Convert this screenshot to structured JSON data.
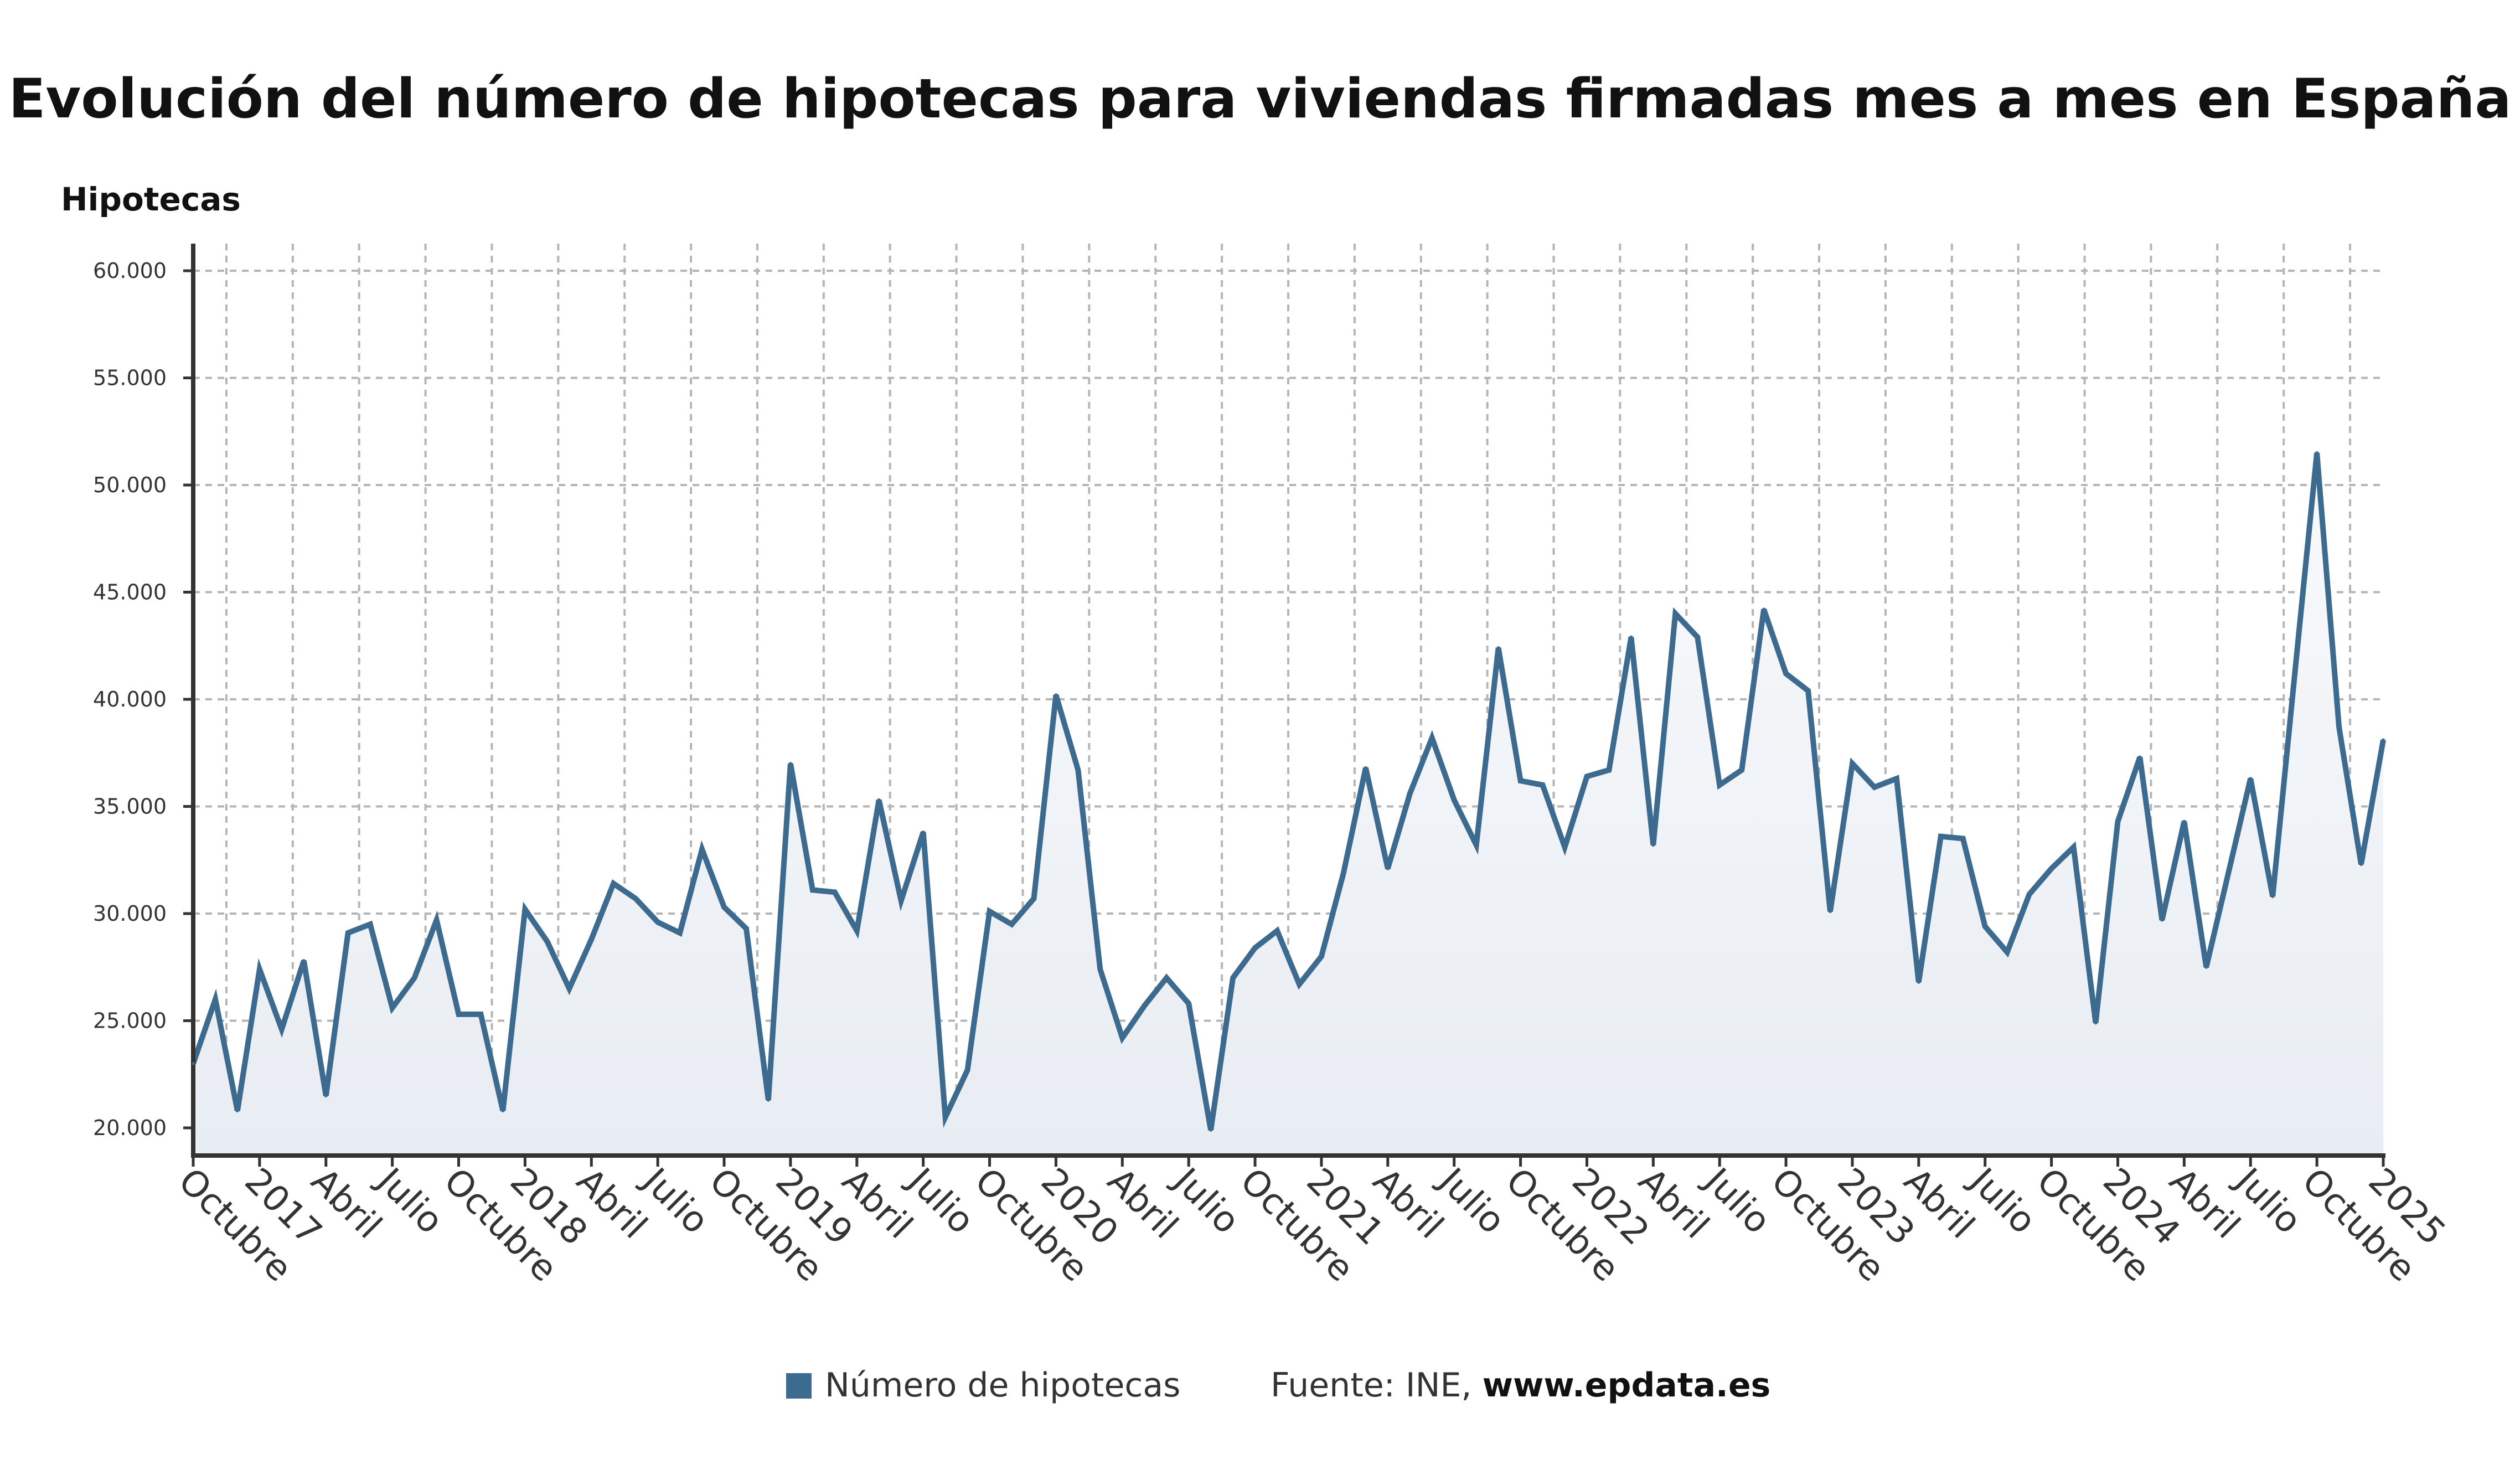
{
  "chart_data": {
    "type": "area",
    "title": "Evolución del número de hipotecas para viviendas firmadas mes a mes en España",
    "ylabel": "Hipotecas",
    "xlabel": "",
    "ylim": [
      20000,
      60000
    ],
    "yticks": [
      20000,
      25000,
      30000,
      35000,
      40000,
      45000,
      50000,
      55000,
      60000
    ],
    "ytick_labels": [
      "20.000",
      "25.000",
      "30.000",
      "35.000",
      "40.000",
      "45.000",
      "50.000",
      "55.000",
      "60.000"
    ],
    "x_start": "2016-10",
    "x_end": "2025-01",
    "xtick_labels": [
      "Octubre",
      "2017",
      "Abril",
      "Julio",
      "Octubre",
      "2018",
      "Abril",
      "Julio",
      "Octubre",
      "2019",
      "Abril",
      "Julio",
      "Octubre",
      "2020",
      "Abril",
      "Julio",
      "Octubre",
      "2021",
      "Abril",
      "Julio",
      "Octubre",
      "2022",
      "Abril",
      "Julio",
      "Octubre",
      "2023",
      "Abril",
      "Julio",
      "Octubre",
      "2024",
      "Abril",
      "Julio",
      "Octubre",
      "2025"
    ],
    "grid": true,
    "legend_placement": "bottom",
    "series": [
      {
        "name": "Número de hipotecas",
        "color": "#3d6a8f",
        "fill_color": "#e8edf3",
        "x": [
          "2016-10",
          "2016-11",
          "2016-12",
          "2017-01",
          "2017-02",
          "2017-03",
          "2017-04",
          "2017-05",
          "2017-06",
          "2017-07",
          "2017-08",
          "2017-09",
          "2017-10",
          "2017-11",
          "2017-12",
          "2018-01",
          "2018-02",
          "2018-03",
          "2018-04",
          "2018-05",
          "2018-06",
          "2018-07",
          "2018-08",
          "2018-09",
          "2018-10",
          "2018-11",
          "2018-12",
          "2019-01",
          "2019-02",
          "2019-03",
          "2019-04",
          "2019-05",
          "2019-06",
          "2019-07",
          "2019-08",
          "2019-09",
          "2019-10",
          "2019-11",
          "2019-12",
          "2020-01",
          "2020-02",
          "2020-03",
          "2020-04",
          "2020-05",
          "2020-06",
          "2020-07",
          "2020-08",
          "2020-09",
          "2020-10",
          "2020-11",
          "2020-12",
          "2021-01",
          "2021-02",
          "2021-03",
          "2021-04",
          "2021-05",
          "2021-06",
          "2021-07",
          "2021-08",
          "2021-09",
          "2021-10",
          "2021-11",
          "2021-12",
          "2022-01",
          "2022-02",
          "2022-03",
          "2022-04",
          "2022-05",
          "2022-06",
          "2022-07",
          "2022-08",
          "2022-09",
          "2022-10",
          "2022-11",
          "2022-12",
          "2023-01",
          "2023-02",
          "2023-03",
          "2023-04",
          "2023-05",
          "2023-06",
          "2023-07",
          "2023-08",
          "2023-09",
          "2023-10",
          "2023-11",
          "2023-12",
          "2024-01",
          "2024-02",
          "2024-03",
          "2024-04",
          "2024-05",
          "2024-06",
          "2024-07",
          "2024-08",
          "2024-09",
          "2024-10",
          "2024-11",
          "2024-12",
          "2025-01"
        ],
        "values": [
          23000,
          26000,
          20800,
          27400,
          24600,
          27800,
          21500,
          29100,
          29500,
          25600,
          27000,
          29700,
          25300,
          25300,
          20800,
          30200,
          28700,
          26500,
          28800,
          31400,
          30700,
          29600,
          29100,
          33000,
          30300,
          29300,
          21300,
          37000,
          31100,
          31000,
          29200,
          35300,
          30600,
          33800,
          20500,
          22700,
          30100,
          29500,
          30700,
          40200,
          36700,
          27400,
          24200,
          25700,
          27000,
          25800,
          19900,
          27000,
          28400,
          29200,
          26700,
          28000,
          31900,
          36800,
          32100,
          35600,
          38200,
          35300,
          33200,
          42400,
          36200,
          36000,
          33100,
          36400,
          36700,
          42900,
          33200,
          44000,
          42900,
          36000,
          36700,
          44200,
          41200,
          40400,
          30100,
          37000,
          35900,
          36300,
          26800,
          33600,
          33500,
          29400,
          28200,
          30900,
          32100,
          33100,
          24900,
          34300,
          37300,
          29700,
          34300,
          27500,
          31900,
          36300,
          30800,
          41200,
          51500,
          38700,
          32300,
          38100
        ]
      }
    ]
  },
  "legend": {
    "series_label": "Número de hipotecas",
    "source_prefix": "Fuente: INE, ",
    "source_site": "www.epdata.es"
  }
}
